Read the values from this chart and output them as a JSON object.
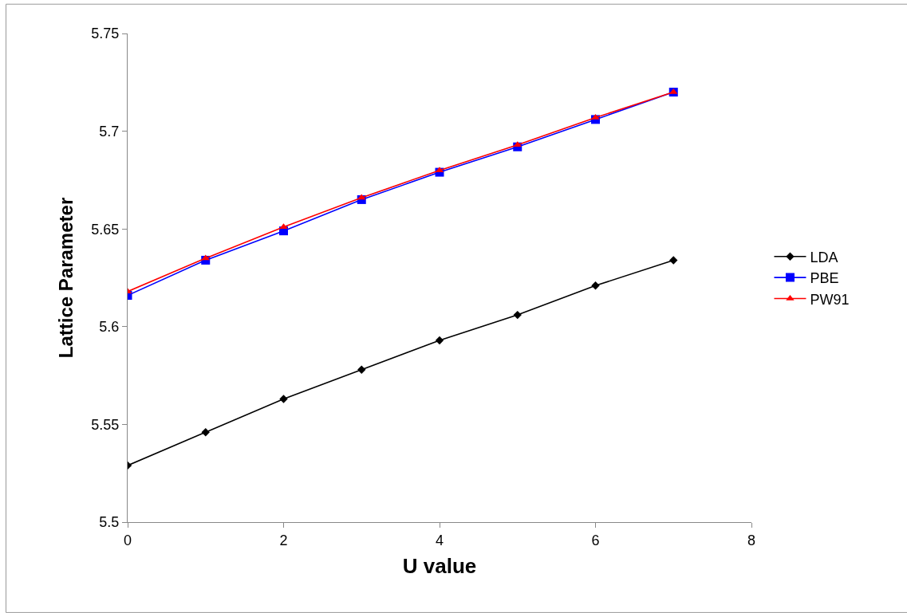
{
  "chart_data": {
    "type": "line",
    "xlabel": "U value",
    "ylabel": "Lattice Parameter",
    "x": [
      0,
      1,
      2,
      3,
      4,
      5,
      6,
      7
    ],
    "series": [
      {
        "name": "LDA",
        "color": "#000000",
        "marker": "diamond",
        "values": [
          5.529,
          5.546,
          5.563,
          5.578,
          5.593,
          5.606,
          5.621,
          5.634
        ]
      },
      {
        "name": "PBE",
        "color": "#0000ff",
        "marker": "square",
        "values": [
          5.616,
          5.634,
          5.649,
          5.665,
          5.679,
          5.692,
          5.706,
          5.72
        ]
      },
      {
        "name": "PW91",
        "color": "#ff0000",
        "marker": "triangle",
        "values": [
          5.618,
          5.635,
          5.651,
          5.666,
          5.68,
          5.693,
          5.707,
          5.72
        ]
      }
    ],
    "xlim": [
      0,
      8
    ],
    "xticks": [
      0,
      2,
      4,
      6,
      8
    ],
    "ylim": [
      5.5,
      5.75
    ],
    "yticks": [
      {
        "value": 5.5,
        "label": "5.5"
      },
      {
        "value": 5.55,
        "label": "5.55"
      },
      {
        "value": 5.6,
        "label": "5.6"
      },
      {
        "value": 5.65,
        "label": "5.65"
      },
      {
        "value": 5.7,
        "label": "5.7"
      },
      {
        "value": 5.75,
        "label": "5.75"
      }
    ],
    "legend": "right",
    "line_style": "solid"
  }
}
